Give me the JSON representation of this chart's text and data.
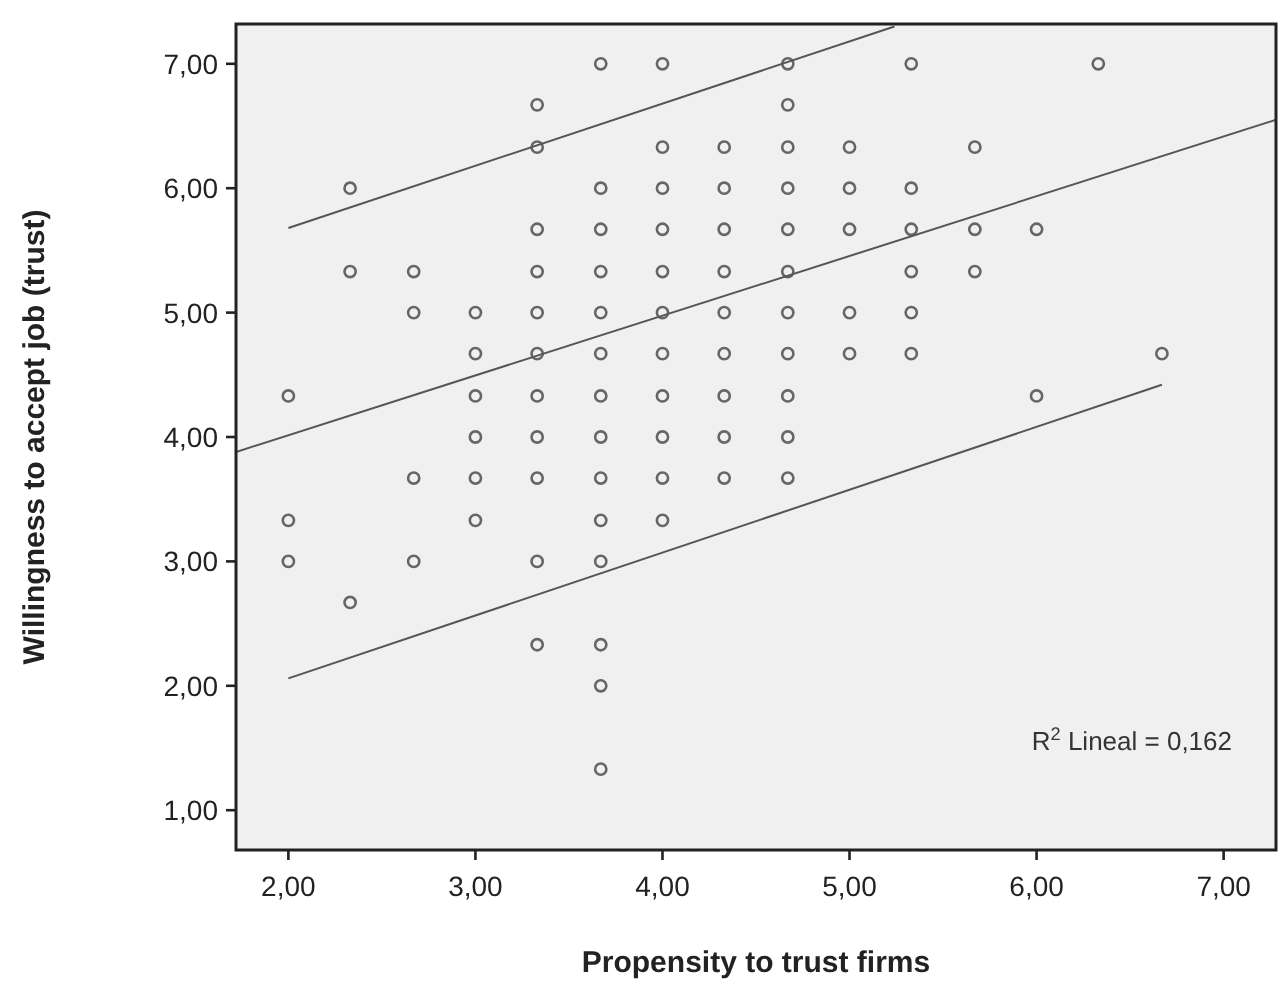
{
  "chart_data": {
    "type": "scatter",
    "xlabel": "Propensity to trust firms",
    "ylabel": "Willingness to accept job (trust)",
    "xlim": [
      1.72,
      7.28
    ],
    "ylim": [
      0.68,
      7.32
    ],
    "xticks": [
      {
        "value": 2,
        "label": "2,00"
      },
      {
        "value": 3,
        "label": "3,00"
      },
      {
        "value": 4,
        "label": "4,00"
      },
      {
        "value": 5,
        "label": "5,00"
      },
      {
        "value": 6,
        "label": "6,00"
      },
      {
        "value": 7,
        "label": "7,00"
      }
    ],
    "yticks": [
      {
        "value": 1,
        "label": "1,00"
      },
      {
        "value": 2,
        "label": "2,00"
      },
      {
        "value": 3,
        "label": "3,00"
      },
      {
        "value": 4,
        "label": "4,00"
      },
      {
        "value": 5,
        "label": "5,00"
      },
      {
        "value": 6,
        "label": "6,00"
      },
      {
        "value": 7,
        "label": "7,00"
      }
    ],
    "grid": false,
    "annotations": [
      "R$^{2}$ Lineal = 0,162"
    ],
    "series": [
      {
        "marker": "circle",
        "color": "#666666",
        "x": [
          2,
          2,
          2,
          2.33,
          2.33,
          2.33,
          2.67,
          2.67,
          2.67,
          2.67,
          3,
          3,
          3,
          3,
          3,
          3,
          3.33,
          3.33,
          3.33,
          3.33,
          3.33,
          3.33,
          3.33,
          3.33,
          3.33,
          3.33,
          3.33,
          3.67,
          3.67,
          3.67,
          3.67,
          3.67,
          3.67,
          3.67,
          3.67,
          3.67,
          3.67,
          3.67,
          3.67,
          3.67,
          3.67,
          4,
          4,
          4,
          4,
          4,
          4,
          4,
          4,
          4,
          4,
          4,
          4.33,
          4.33,
          4.33,
          4.33,
          4.33,
          4.33,
          4.33,
          4.33,
          4.33,
          4.67,
          4.67,
          4.67,
          4.67,
          4.67,
          4.67,
          4.67,
          4.67,
          4.67,
          4.67,
          4.67,
          5,
          5,
          5,
          5,
          5,
          5.33,
          5.33,
          5.33,
          5.33,
          5.33,
          5.33,
          5.67,
          5.67,
          5.67,
          6,
          6,
          6.33,
          6.67
        ],
        "values": [
          4.33,
          3.33,
          3,
          6,
          5.33,
          2.67,
          5.33,
          5,
          3.67,
          3,
          5,
          4.67,
          4.33,
          4,
          3.67,
          3.33,
          6.67,
          6.33,
          5.67,
          5.33,
          5,
          4.67,
          4.33,
          4,
          3.67,
          3,
          2.33,
          7,
          6,
          5.67,
          5.33,
          5,
          4.67,
          4.33,
          4,
          3.67,
          3.33,
          3,
          2.33,
          2,
          1.33,
          7,
          6.33,
          6,
          5.67,
          5.33,
          5,
          4.67,
          4.33,
          4,
          3.67,
          3.33,
          6.33,
          6,
          5.67,
          5.33,
          5,
          4.67,
          4.33,
          4,
          3.67,
          7,
          6.67,
          6.33,
          6,
          5.67,
          5.33,
          5,
          4.67,
          4.33,
          4,
          3.67,
          6.33,
          6,
          5.67,
          5,
          4.67,
          7,
          6,
          5.67,
          5.33,
          5,
          4.67,
          6.33,
          5.67,
          5.33,
          5.67,
          4.33,
          7,
          4.67
        ]
      },
      {
        "type": "line",
        "marker": "none",
        "line_style": "solid",
        "color": "#555555",
        "x": [
          1.72,
          7.28
        ],
        "values": [
          3.88,
          6.55
        ]
      },
      {
        "type": "line",
        "marker": "none",
        "line_style": "solid",
        "color": "#555555",
        "x": [
          2,
          5.24
        ],
        "values": [
          5.68,
          7.3
        ]
      },
      {
        "type": "line",
        "marker": "none",
        "line_style": "solid",
        "color": "#555555",
        "x": [
          2,
          6.67
        ],
        "values": [
          2.06,
          4.42
        ]
      }
    ]
  }
}
